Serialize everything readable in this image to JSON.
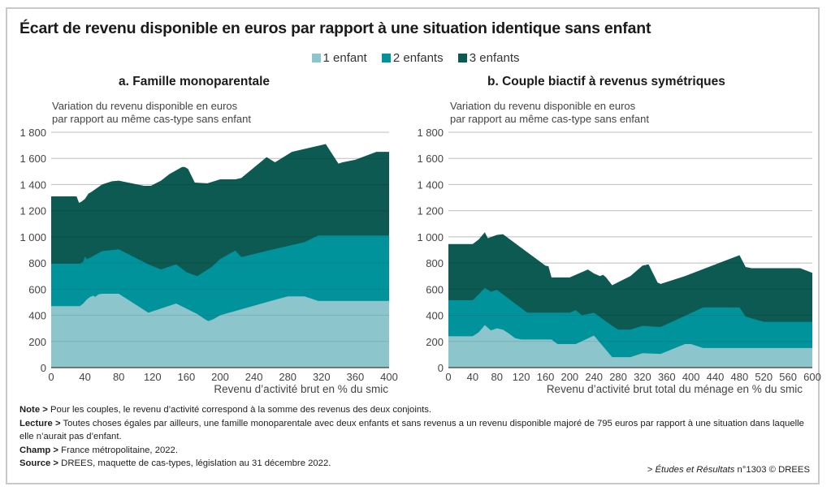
{
  "title": "Écart de revenu disponible en euros par rapport à une situation identique sans enfant",
  "legend": [
    {
      "label": "1 enfant",
      "color": "#8cc6cc"
    },
    {
      "label": "2 enfants",
      "color": "#00939b"
    },
    {
      "label": "3 enfants",
      "color": "#0c5a52"
    }
  ],
  "chart_data": [
    {
      "type": "area",
      "stacked": true,
      "title": "a. Famille monoparentale",
      "ylabel": [
        "Variation du revenu disponible en euros",
        "par rapport au même cas-type sans enfant"
      ],
      "xlabel": "Revenu d’activité brut en % du smic",
      "xlim": [
        0,
        400
      ],
      "ylim": [
        0,
        1800
      ],
      "xticks": [
        "0",
        "40",
        "80",
        "120",
        "160",
        "200",
        "240",
        "280",
        "320",
        "360",
        "400"
      ],
      "yticks": [
        "0",
        "200",
        "400",
        "600",
        "800",
        "1 000",
        "1 200",
        "1 400",
        "1 600",
        "1 800"
      ],
      "grid": true,
      "series": [
        {
          "name": "1 enfant",
          "x": [
            0,
            34,
            38,
            42,
            46,
            50,
            52,
            56,
            60,
            80,
            115,
            148,
            173,
            182,
            186,
            192,
            200,
            260,
            280,
            300,
            316,
            400
          ],
          "values": [
            470,
            470,
            490,
            520,
            540,
            550,
            540,
            560,
            565,
            565,
            420,
            490,
            410,
            370,
            355,
            370,
            400,
            510,
            545,
            545,
            510,
            510
          ]
        },
        {
          "name": "2 enfants",
          "x": [
            0,
            34,
            38,
            40,
            42,
            46,
            60,
            80,
            115,
            130,
            148,
            160,
            173,
            190,
            200,
            218,
            225,
            260,
            300,
            316,
            400
          ],
          "values": [
            795,
            795,
            810,
            850,
            830,
            840,
            890,
            905,
            790,
            750,
            790,
            730,
            700,
            770,
            830,
            895,
            845,
            900,
            960,
            1010,
            1010
          ]
        },
        {
          "name": "3 enfants",
          "x": [
            0,
            30,
            33,
            36,
            40,
            44,
            48,
            60,
            72,
            80,
            110,
            118,
            130,
            140,
            155,
            158,
            162,
            170,
            185,
            200,
            218,
            225,
            255,
            265,
            285,
            325,
            340,
            345,
            360,
            385,
            400
          ],
          "values": [
            1310,
            1310,
            1260,
            1270,
            1290,
            1330,
            1345,
            1400,
            1425,
            1430,
            1390,
            1390,
            1430,
            1480,
            1535,
            1535,
            1520,
            1415,
            1410,
            1440,
            1440,
            1450,
            1610,
            1570,
            1650,
            1710,
            1560,
            1570,
            1590,
            1650,
            1650
          ]
        }
      ]
    },
    {
      "type": "area",
      "stacked": true,
      "title": "b. Couple biactif à revenus symétriques",
      "ylabel": [
        "Variation du revenu disponible en euros",
        "par rapport au même cas-type sans enfant"
      ],
      "xlabel": "Revenu d’activité brut total du ménage en % du smic",
      "xlim": [
        0,
        600
      ],
      "ylim": [
        0,
        1800
      ],
      "xticks": [
        "0",
        "40",
        "80",
        "120",
        "160",
        "200",
        "240",
        "280",
        "320",
        "360",
        "400",
        "440",
        "480",
        "520",
        "560",
        "600"
      ],
      "yticks": [
        "0",
        "200",
        "400",
        "600",
        "800",
        "1 000",
        "1 200",
        "1 400",
        "1 600",
        "1 800"
      ],
      "grid": true,
      "series": [
        {
          "name": "1 enfant",
          "x": [
            0,
            40,
            50,
            60,
            70,
            80,
            90,
            100,
            110,
            120,
            170,
            180,
            210,
            240,
            270,
            300,
            320,
            350,
            390,
            400,
            420,
            600
          ],
          "values": [
            240,
            240,
            270,
            325,
            285,
            300,
            290,
            260,
            225,
            215,
            215,
            180,
            180,
            245,
            80,
            80,
            110,
            105,
            180,
            180,
            150,
            150
          ]
        },
        {
          "name": "2 enfants",
          "x": [
            0,
            40,
            50,
            60,
            70,
            80,
            90,
            130,
            170,
            200,
            210,
            220,
            240,
            270,
            280,
            300,
            320,
            350,
            420,
            480,
            490,
            520,
            600
          ],
          "values": [
            515,
            515,
            560,
            610,
            580,
            595,
            560,
            420,
            420,
            420,
            440,
            400,
            420,
            320,
            290,
            290,
            320,
            310,
            460,
            460,
            390,
            350,
            350
          ]
        },
        {
          "name": "3 enfants",
          "x": [
            0,
            40,
            50,
            60,
            65,
            80,
            90,
            160,
            165,
            170,
            200,
            230,
            240,
            250,
            255,
            260,
            270,
            300,
            320,
            330,
            345,
            350,
            390,
            480,
            490,
            500,
            540,
            580,
            600
          ],
          "values": [
            945,
            945,
            980,
            1035,
            990,
            1015,
            1020,
            780,
            775,
            690,
            690,
            750,
            720,
            700,
            710,
            690,
            630,
            700,
            780,
            790,
            650,
            640,
            700,
            860,
            770,
            760,
            760,
            760,
            725
          ]
        }
      ]
    }
  ],
  "notes": [
    {
      "label": "Note >",
      "text": " Pour les couples, le revenu d’activité correspond à la somme des revenus des deux conjoints."
    },
    {
      "label": "Lecture >",
      "text": " Toutes choses égales par ailleurs, une famille monoparentale avec deux enfants et sans revenus a un revenu disponible majoré de 795 euros par rapport à une situation dans laquelle elle n’aurait pas d’enfant."
    },
    {
      "label": "Champ >",
      "text": " France métropolitaine, 2022."
    },
    {
      "label": "Source >",
      "text": " DREES, maquette de cas-types, législation au 31 décembre 2022."
    }
  ],
  "credit": {
    "prefix": "> ",
    "publication": "Études et Résultats",
    "suffix": " n°1303 © DREES"
  }
}
